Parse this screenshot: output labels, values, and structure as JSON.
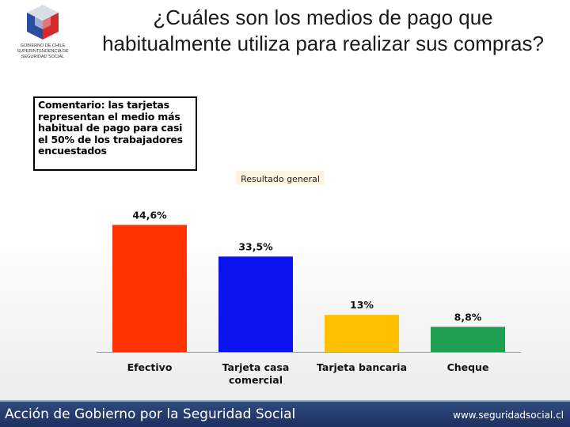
{
  "header": {
    "title_line1": "¿Cuáles son los medios de pago que",
    "title_line2": "habitualmente utiliza para realizar sus compras?"
  },
  "logo": {
    "line1": "GOBIERNO DE CHILE",
    "line2": "SUPERINTENDENCIA DE",
    "line3": "SEGURIDAD SOCIAL"
  },
  "comment": {
    "text": "Comentario:  las tarjetas representan el medio más habitual de pago para casi el 50%  de los trabajadores encuestados"
  },
  "chart_label": "Resultado general",
  "chart_data": {
    "type": "bar",
    "title": "Resultado general",
    "categories": [
      "Efectivo",
      "Tarjeta casa comercial",
      "Tarjeta bancaria",
      "Cheque"
    ],
    "values": [
      44.6,
      33.5,
      13,
      8.8
    ],
    "data_labels": [
      "44,6%",
      "33,5%",
      "13%",
      "8,8%"
    ],
    "colors": [
      "#ff3300",
      "#0a14ee",
      "#ffc000",
      "#1ea050"
    ],
    "ylim": [
      0,
      50
    ],
    "grid": false,
    "legend": "none"
  },
  "footer": {
    "left": "Acción de Gobierno por la Seguridad Social",
    "right": "www.seguridadsocial.cl"
  }
}
